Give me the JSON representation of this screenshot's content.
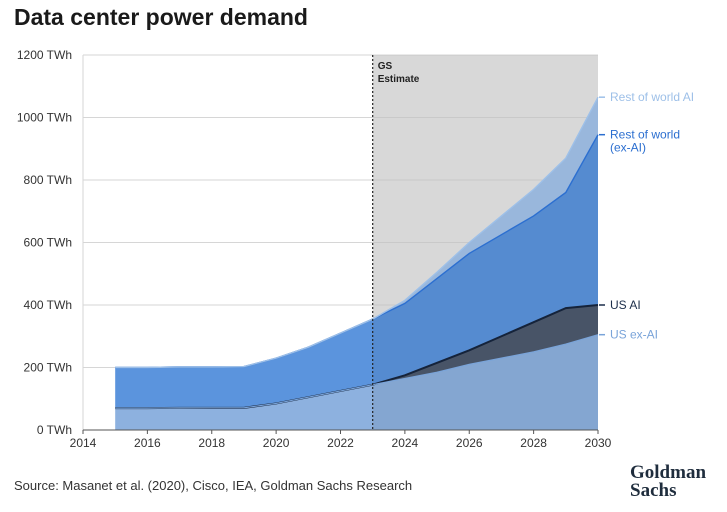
{
  "title": "Data center power demand",
  "source": "Source: Masanet et al. (2020), Cisco, IEA, Goldman Sachs Research",
  "logo": {
    "line1": "Goldman",
    "line2": "Sachs"
  },
  "colors": {
    "us_ex_ai": "#8db1df",
    "us_ai": "#4d5a6e",
    "rest_ex_ai": "#5b94dd",
    "rest_ex_ai_estimate": "#5389d0",
    "rest_ai": "#a3c3ea",
    "estimate_shade": "#e6e6e6",
    "us_ex_ai_label": "#7aa4d9",
    "us_ai_label": "#1c2e4a",
    "rest_ex_ai_label": "#2c6fd0",
    "rest_ai_label": "#9ec0e8"
  },
  "chart_data": {
    "type": "area",
    "stacked": true,
    "x": [
      2015,
      2016,
      2017,
      2018,
      2019,
      2020,
      2021,
      2022,
      2023,
      2024,
      2025,
      2026,
      2027,
      2028,
      2029,
      2030
    ],
    "series": [
      {
        "name": "US ex-AI",
        "values": [
          70,
          70,
          71,
          71,
          71,
          85,
          105,
          125,
          145,
          165,
          185,
          210,
          230,
          250,
          275,
          305
        ]
      },
      {
        "name": "US AI",
        "values": [
          0,
          0,
          0,
          0,
          0,
          0,
          0,
          0,
          0,
          10,
          30,
          45,
          70,
          95,
          115,
          95
        ]
      },
      {
        "name": "Rest of world (ex-AI)",
        "values": [
          130,
          130,
          131,
          131,
          132,
          145,
          160,
          185,
          210,
          230,
          270,
          310,
          325,
          340,
          370,
          545
        ]
      },
      {
        "name": "Rest of world AI",
        "values": [
          0,
          0,
          0,
          0,
          0,
          0,
          0,
          0,
          0,
          10,
          20,
          35,
          60,
          85,
          110,
          120
        ]
      }
    ],
    "xlim": [
      2014,
      2030
    ],
    "ylim": [
      0,
      1200
    ],
    "x_ticks": [
      "2014",
      "2016",
      "2018",
      "2020",
      "2022",
      "2024",
      "2026",
      "2028",
      "2030"
    ],
    "y_ticks": [
      "0 TWh",
      "200 TWh",
      "400 TWh",
      "600 TWh",
      "800 TWh",
      "1000 TWh",
      "1200 TWh"
    ],
    "estimate_start": 2023,
    "estimate_label": [
      "GS",
      "Estimate"
    ],
    "series_labels": [
      {
        "text": [
          "Rest of world AI"
        ],
        "value": 1065,
        "color_key": "rest_ai_label"
      },
      {
        "text": [
          "Rest of world",
          "(ex-AI)"
        ],
        "value": 945,
        "color_key": "rest_ex_ai_label"
      },
      {
        "text": [
          "US AI"
        ],
        "value": 400,
        "color_key": "us_ai_label"
      },
      {
        "text": [
          "US ex-AI"
        ],
        "value": 305,
        "color_key": "us_ex_ai_label"
      }
    ],
    "grid": true
  }
}
